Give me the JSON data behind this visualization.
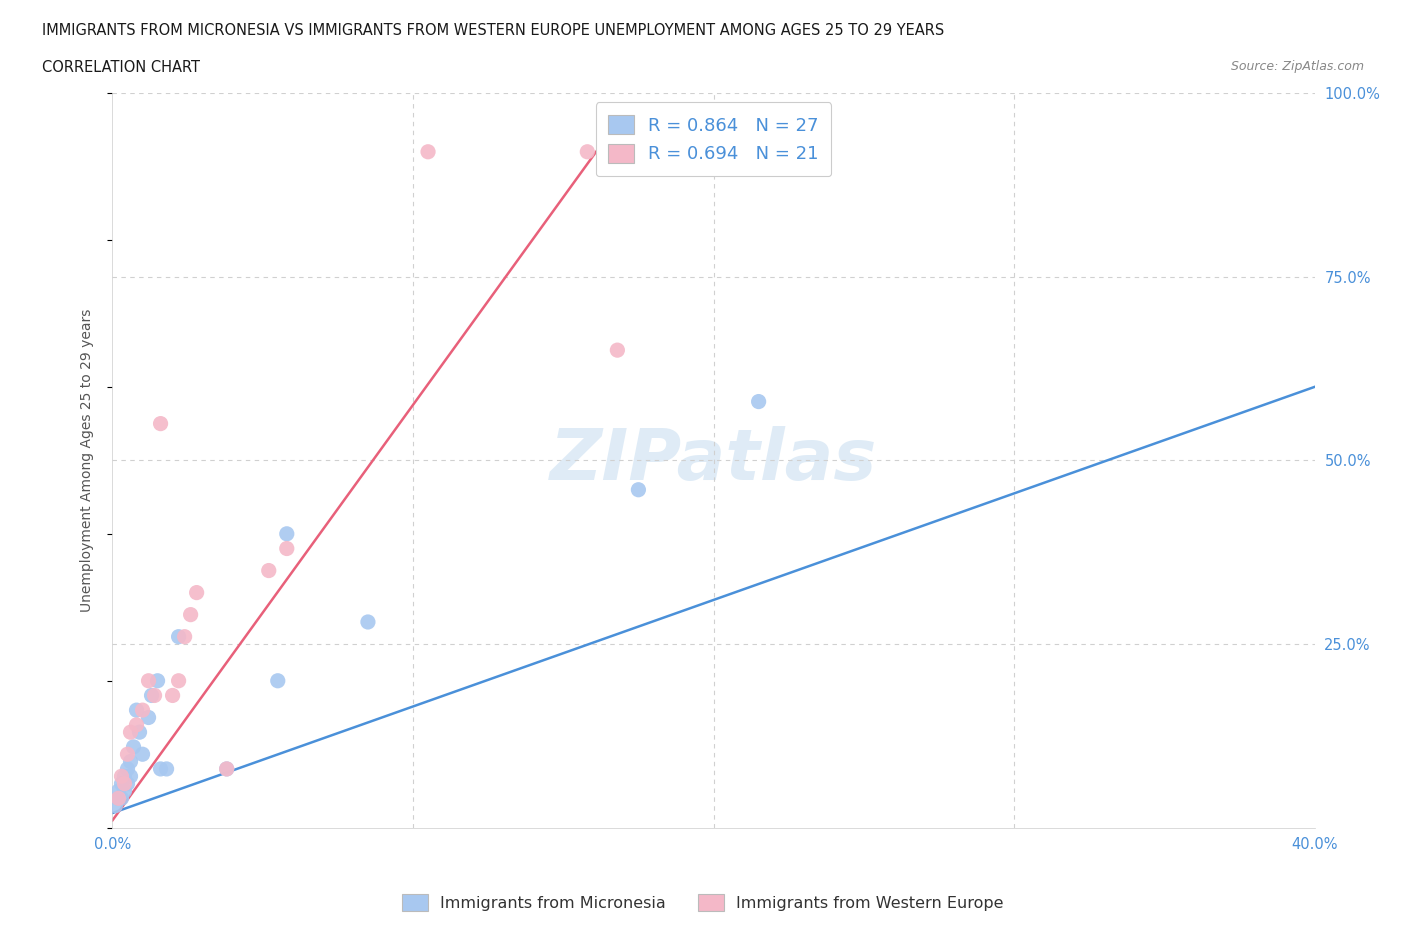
{
  "title_line1": "IMMIGRANTS FROM MICRONESIA VS IMMIGRANTS FROM WESTERN EUROPE UNEMPLOYMENT AMONG AGES 25 TO 29 YEARS",
  "title_line2": "CORRELATION CHART",
  "source_text": "Source: ZipAtlas.com",
  "ylabel": "Unemployment Among Ages 25 to 29 years",
  "xlim": [
    0.0,
    0.4
  ],
  "ylim": [
    0.0,
    1.0
  ],
  "xticks": [
    0.0,
    0.1,
    0.2,
    0.3,
    0.4
  ],
  "yticks": [
    0.0,
    0.25,
    0.5,
    0.75,
    1.0
  ],
  "blue_R": 0.864,
  "blue_N": 27,
  "pink_R": 0.694,
  "pink_N": 21,
  "blue_color": "#a8c8f0",
  "pink_color": "#f4b8c8",
  "blue_line_color": "#4a90d9",
  "pink_line_color": "#e8607a",
  "blue_scatter_x": [
    0.001,
    0.002,
    0.002,
    0.003,
    0.003,
    0.004,
    0.004,
    0.005,
    0.005,
    0.006,
    0.006,
    0.007,
    0.008,
    0.009,
    0.01,
    0.012,
    0.013,
    0.015,
    0.016,
    0.018,
    0.022,
    0.038,
    0.055,
    0.058,
    0.085,
    0.175,
    0.215
  ],
  "blue_scatter_y": [
    0.03,
    0.04,
    0.05,
    0.04,
    0.06,
    0.05,
    0.07,
    0.06,
    0.08,
    0.07,
    0.09,
    0.11,
    0.16,
    0.13,
    0.1,
    0.15,
    0.18,
    0.2,
    0.08,
    0.08,
    0.26,
    0.08,
    0.2,
    0.4,
    0.28,
    0.46,
    0.58
  ],
  "pink_scatter_x": [
    0.002,
    0.003,
    0.004,
    0.005,
    0.006,
    0.008,
    0.01,
    0.012,
    0.014,
    0.016,
    0.02,
    0.022,
    0.024,
    0.026,
    0.028,
    0.038,
    0.052,
    0.058,
    0.105,
    0.158,
    0.168
  ],
  "pink_scatter_y": [
    0.04,
    0.07,
    0.06,
    0.1,
    0.13,
    0.14,
    0.16,
    0.2,
    0.18,
    0.55,
    0.18,
    0.2,
    0.26,
    0.29,
    0.32,
    0.08,
    0.35,
    0.38,
    0.92,
    0.92,
    0.65
  ],
  "blue_line_x": [
    0.0,
    0.4
  ],
  "blue_line_y": [
    0.02,
    0.6
  ],
  "pink_line_x": [
    0.0,
    0.168
  ],
  "pink_line_y": [
    0.01,
    0.96
  ],
  "watermark": "ZIPatlas",
  "legend_blue_label": "Immigrants from Micronesia",
  "legend_pink_label": "Immigrants from Western Europe",
  "background_color": "#ffffff",
  "grid_color": "#d0d0d0"
}
